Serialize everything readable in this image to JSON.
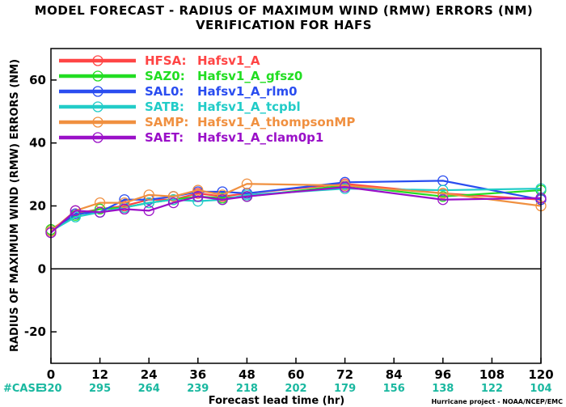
{
  "chart_data": {
    "type": "line",
    "title": "MODEL FORECAST - RADIUS OF MAXIMUM WIND (RMW) ERRORS (NM)",
    "subtitle": "VERIFICATION FOR HAFS",
    "xlabel": "Forecast lead time (hr)",
    "ylabel": "RADIUS OF MAXIMUM WIND (RMW) ERRORS (NM)",
    "xlim": [
      0,
      120
    ],
    "ylim": [
      -30,
      70
    ],
    "xticks": [
      "0",
      "12",
      "24",
      "36",
      "48",
      "60",
      "72",
      "84",
      "96",
      "108",
      "120"
    ],
    "yticks": [
      "-20",
      "0",
      "20",
      "40",
      "60"
    ],
    "grid": false,
    "legend_position": "top-left",
    "case_label": "#CASE",
    "case_counts": [
      "320",
      "295",
      "264",
      "239",
      "218",
      "202",
      "179",
      "156",
      "138",
      "122",
      "104"
    ],
    "case_color": "#1ab8a0",
    "credit": "Hurricane project - NOAA/NCEP/EMC",
    "x": [
      0,
      6,
      12,
      18,
      24,
      30,
      36,
      42,
      48,
      72,
      96,
      120
    ],
    "series": [
      {
        "name": "HFSA:",
        "desc": "Hafsv1_A",
        "color": "#ff4545",
        "values": [
          12.5,
          17.5,
          19,
          20,
          22,
          22,
          24,
          23,
          24,
          27,
          24,
          22
        ]
      },
      {
        "name": "SAZ0:",
        "desc": "Hafsv1_A_gfsz0",
        "color": "#22dd22",
        "values": [
          12.5,
          17,
          19,
          19.5,
          21,
          22,
          23,
          22.5,
          23,
          26.5,
          23,
          25
        ]
      },
      {
        "name": "SAL0:",
        "desc": "Hafsv1_A_rlm0",
        "color": "#2a4df0",
        "values": [
          12,
          17.5,
          18,
          22,
          22,
          23,
          24.5,
          24.5,
          24,
          27.5,
          28,
          22
        ]
      },
      {
        "name": "SATB:",
        "desc": "Hafsv1_A_tcpbl",
        "color": "#22ccc8",
        "values": [
          12,
          16.5,
          18,
          19.5,
          21,
          22,
          21.5,
          22,
          23.5,
          25.5,
          25,
          25.5
        ]
      },
      {
        "name": "SAMP:",
        "desc": "Hafsv1_A_thompsonMP",
        "color": "#f09040",
        "values": [
          12,
          18.5,
          21,
          21,
          23.5,
          23,
          25,
          23.5,
          27,
          26.5,
          24,
          20
        ]
      },
      {
        "name": "SAET:",
        "desc": "Hafsv1_A_clam0p1",
        "color": "#9a10c8",
        "values": [
          11.5,
          18.5,
          18,
          19,
          18.5,
          21,
          23,
          22,
          23,
          26,
          22,
          22.5
        ]
      }
    ]
  }
}
